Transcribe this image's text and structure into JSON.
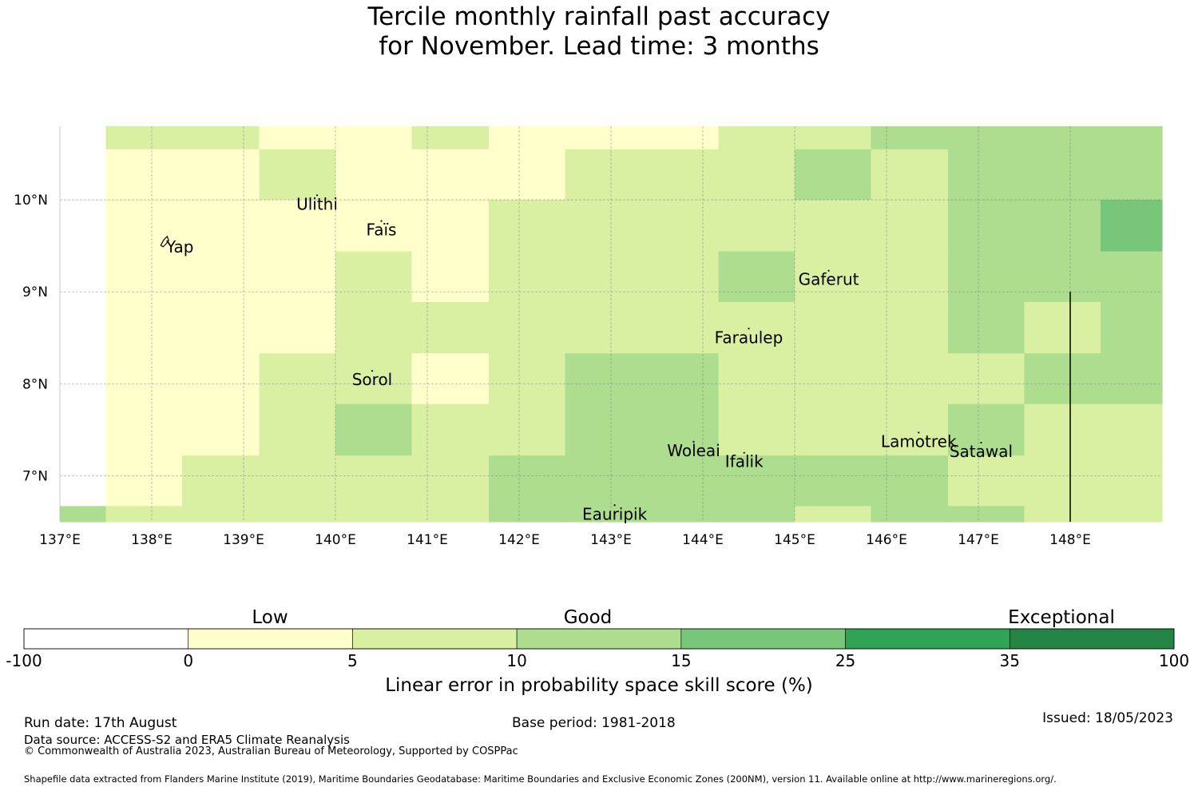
{
  "title": {
    "line1": "Tercile monthly rainfall past accuracy",
    "line2": "for November. Lead time: 3 months"
  },
  "map": {
    "lon_range": [
      137.0,
      149.0
    ],
    "lat_range": [
      6.5,
      10.8
    ],
    "lon_ticks": [
      {
        "value": 137,
        "label": "137°E"
      },
      {
        "value": 138,
        "label": "138°E"
      },
      {
        "value": 139,
        "label": "139°E"
      },
      {
        "value": 140,
        "label": "140°E"
      },
      {
        "value": 141,
        "label": "141°E"
      },
      {
        "value": 142,
        "label": "142°E"
      },
      {
        "value": 143,
        "label": "143°E"
      },
      {
        "value": 144,
        "label": "144°E"
      },
      {
        "value": 145,
        "label": "145°E"
      },
      {
        "value": 146,
        "label": "146°E"
      },
      {
        "value": 147,
        "label": "147°E"
      },
      {
        "value": 148,
        "label": "148°E"
      }
    ],
    "lat_ticks": [
      {
        "value": 7,
        "label": "7°N"
      },
      {
        "value": 8,
        "label": "8°N"
      },
      {
        "value": 9,
        "label": "9°N"
      },
      {
        "value": 10,
        "label": "10°N"
      }
    ],
    "grid": true,
    "cell_edges_lon": [
      137.0,
      137.5,
      138.33,
      139.17,
      140.0,
      140.83,
      141.67,
      142.5,
      143.33,
      144.17,
      145.0,
      145.83,
      146.67,
      147.5,
      148.33,
      149.0
    ],
    "cell_edges_lat": [
      10.8,
      10.55,
      10.0,
      9.44,
      8.89,
      8.33,
      7.78,
      7.22,
      6.67,
      6.5
    ],
    "cells": [
      [
        -1,
        1,
        1,
        0,
        0,
        1,
        0,
        0,
        0,
        1,
        1,
        2,
        2,
        2,
        2
      ],
      [
        -1,
        0,
        0,
        1,
        0,
        0,
        0,
        1,
        1,
        1,
        2,
        1,
        2,
        2,
        2
      ],
      [
        -1,
        0,
        0,
        0,
        0,
        0,
        1,
        1,
        1,
        1,
        1,
        1,
        2,
        2,
        3
      ],
      [
        -1,
        0,
        0,
        0,
        1,
        0,
        1,
        1,
        1,
        2,
        1,
        1,
        2,
        2,
        2
      ],
      [
        -1,
        0,
        0,
        0,
        1,
        1,
        1,
        1,
        1,
        1,
        1,
        1,
        2,
        1,
        2
      ],
      [
        -1,
        0,
        0,
        1,
        1,
        0,
        1,
        2,
        2,
        1,
        1,
        1,
        1,
        2,
        2
      ],
      [
        -1,
        0,
        0,
        1,
        2,
        1,
        1,
        2,
        2,
        1,
        1,
        1,
        2,
        1,
        1
      ],
      [
        -1,
        0,
        1,
        1,
        1,
        1,
        2,
        2,
        2,
        2,
        2,
        2,
        1,
        1,
        1
      ],
      [
        2,
        1,
        1,
        1,
        1,
        1,
        2,
        2,
        2,
        2,
        1,
        2,
        2,
        1,
        1
      ]
    ],
    "eez_boundary": {
      "lon": 148.0,
      "lat_from": 6.5,
      "lat_to": 9.0
    },
    "islands": [
      {
        "name": "Ulithi",
        "lon": 139.8,
        "lat": 10.05
      },
      {
        "name": "Faïs",
        "lon": 140.5,
        "lat": 9.77
      },
      {
        "name": "Yap",
        "lon": 138.15,
        "lat": 9.55
      },
      {
        "name": "Gaferut",
        "lon": 145.37,
        "lat": 9.23
      },
      {
        "name": "Faraulep",
        "lon": 144.5,
        "lat": 8.6
      },
      {
        "name": "Sorol",
        "lon": 140.4,
        "lat": 8.14
      },
      {
        "name": "Woleai",
        "lon": 143.9,
        "lat": 7.37
      },
      {
        "name": "Ifalik",
        "lon": 144.45,
        "lat": 7.25
      },
      {
        "name": "Lamotrek",
        "lon": 146.35,
        "lat": 7.47
      },
      {
        "name": "Satawal",
        "lon": 147.03,
        "lat": 7.36
      },
      {
        "name": "Eauripik",
        "lon": 143.04,
        "lat": 6.68
      }
    ]
  },
  "legend": {
    "colors": [
      "#ffffff",
      "#ffffcc",
      "#d9f0a3",
      "#addd8e",
      "#78c679",
      "#31a354",
      "#238443"
    ],
    "ticks": [
      "-100",
      "0",
      "5",
      "10",
      "15",
      "25",
      "35",
      "100"
    ],
    "categories": [
      "Low",
      "Good",
      "Exceptional"
    ],
    "label": "Linear error in probability space skill score (%)"
  },
  "footer": {
    "run_date": "Run date: 17th August",
    "data_source": "Data source: ACCESS-S2 and ERA5 Climate Reanalysis",
    "copyright": "© Commonwealth of Australia 2023, Australian Bureau of Meteorology, Supported by COSPPac",
    "base_period": "Base period: 1981-2018",
    "issued": "Issued: 18/05/2023",
    "shapefile": "Shapefile data extracted from Flanders Marine Institute (2019), Maritime Boundaries Geodatabase: Maritime Boundaries and Exclusive Economic Zones (200NM), version 11. Available online at http://www.marineregions.org/."
  }
}
